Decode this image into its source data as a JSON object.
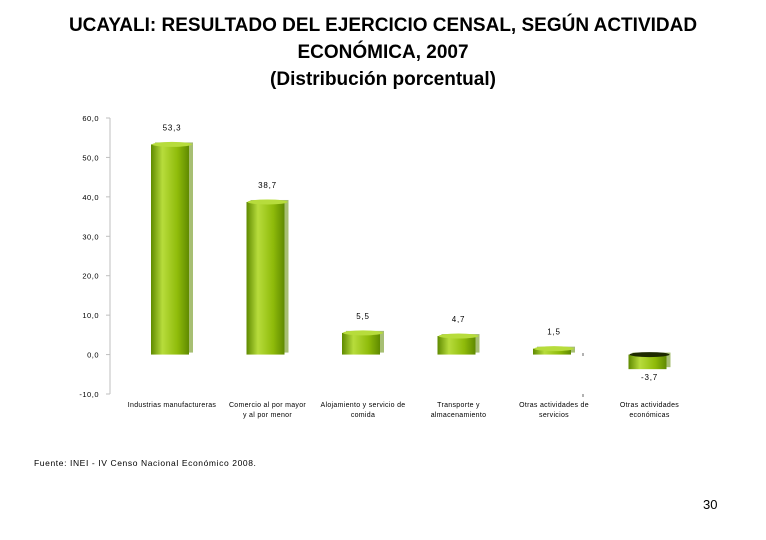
{
  "title_lines": [
    "UCAYALI: RESULTADO DEL EJERCICIO CENSAL, SEGÚN ACTIVIDAD",
    "ECONÓMICA, 2007",
    "(Distribución porcentual)"
  ],
  "source": "Fuente: INEI - IV Censo Nacional Económico 2008.",
  "page_number": "30",
  "colors": {
    "bar_front": "#8fbb0a",
    "bar_light": "#b7dc3c",
    "bar_dark": "#5f8a00",
    "neg_top": "#1e2a00",
    "axis": "#bfbfbf"
  },
  "chart_data": {
    "type": "bar",
    "title": "",
    "xlabel": "",
    "ylabel": "",
    "ylim": [
      -10,
      60
    ],
    "ytick_labels": [
      "60,0",
      "50,0",
      "40,0",
      "30,0",
      "20,0",
      "10,0",
      "0,0",
      "-10,0"
    ],
    "yticks": [
      60,
      50,
      40,
      30,
      20,
      10,
      0,
      -10
    ],
    "categories": [
      [
        "Industrias manufactureras"
      ],
      [
        "Comercio al por mayor",
        "y al por menor"
      ],
      [
        "Alojamiento y servicio de",
        "comida"
      ],
      [
        "Transporte y",
        "almacenamiento"
      ],
      [
        "Otras actividades de",
        "servicios"
      ],
      [
        "Otras actividades",
        "económicas"
      ]
    ],
    "values": [
      53.3,
      38.7,
      5.5,
      4.7,
      1.5,
      -3.7
    ],
    "value_labels": [
      "53,3",
      "38,7",
      "5,5",
      "4,7",
      "1,5",
      "-3,7"
    ],
    "grid": false
  }
}
